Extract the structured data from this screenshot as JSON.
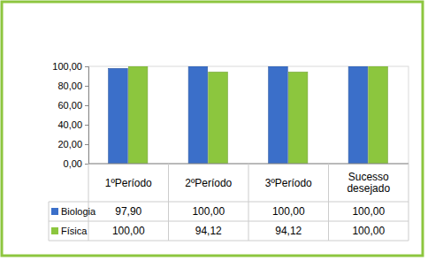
{
  "chart_data": {
    "type": "bar",
    "categories": [
      "1ºPeríodo",
      "2ºPeríodo",
      "3ºPeríodo",
      "Sucesso desejado"
    ],
    "series": [
      {
        "name": "Biologia",
        "color": "#3b6fc9",
        "values": [
          97.9,
          100,
          100,
          100
        ],
        "value_labels": [
          "97,90",
          "100,00",
          "100,00",
          "100,00"
        ]
      },
      {
        "name": "Física",
        "color": "#8cc63e",
        "values": [
          100,
          94.12,
          94.12,
          100
        ],
        "value_labels": [
          "100,00",
          "94,12",
          "94,12",
          "100,00"
        ]
      }
    ],
    "ylim": [
      0,
      100
    ],
    "yticks": [
      {
        "value": 0,
        "label": "0,00"
      },
      {
        "value": 20,
        "label": "20,00"
      },
      {
        "value": 40,
        "label": "40,00"
      },
      {
        "value": 60,
        "label": "60,00"
      },
      {
        "value": 80,
        "label": "80,00"
      },
      {
        "value": 100,
        "label": "100,00"
      }
    ]
  }
}
